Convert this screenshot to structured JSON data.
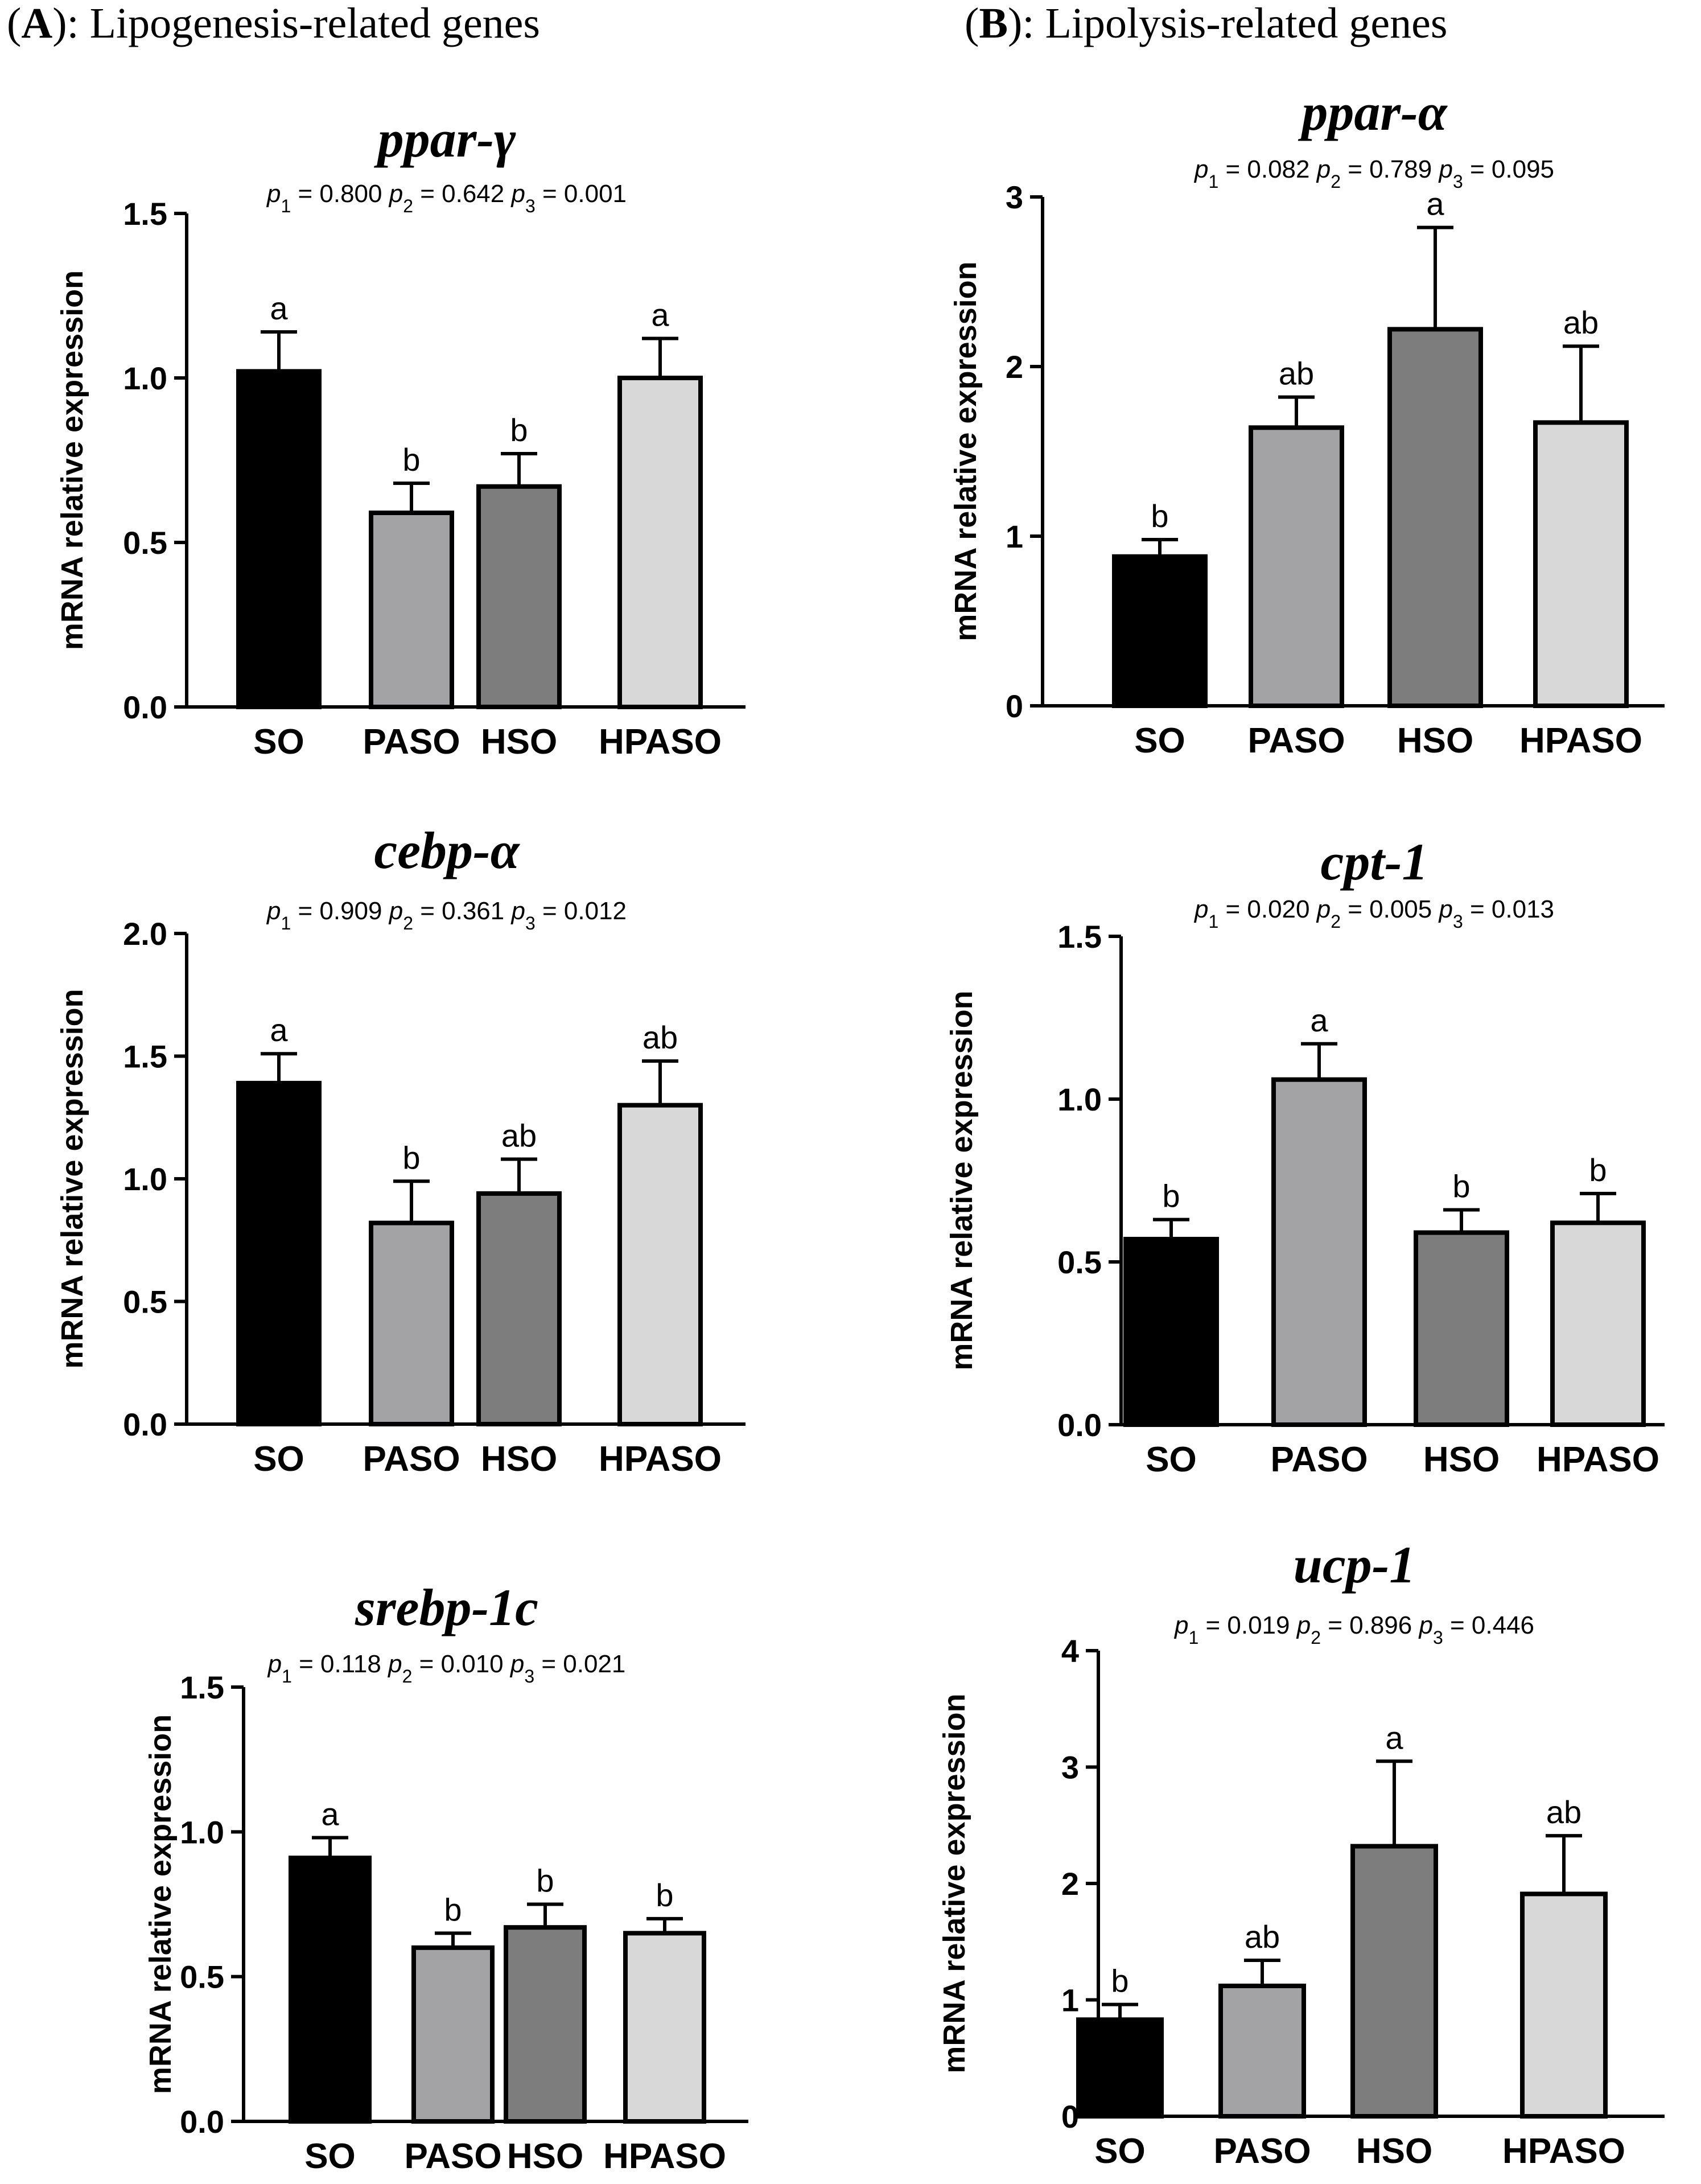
{
  "panels": {
    "a": {
      "letter": "A",
      "rest": "): Lipogenesis-related genes"
    },
    "b": {
      "letter": "B",
      "rest": "): Lipolysis-related genes"
    }
  },
  "colors": {
    "SO": "#000000",
    "PASO": "#a3a3a6",
    "HSO": "#7d7d7d",
    "HPASO": "#d8d8d8"
  },
  "chart_data": [
    {
      "type": "bar",
      "gene": "ppar-γ",
      "pvalues": [
        "0.800",
        "0.642",
        "0.001"
      ],
      "categories": [
        "SO",
        "PASO",
        "HSO",
        "HPASO"
      ],
      "values": [
        1.02,
        0.59,
        0.67,
        1.0
      ],
      "errors": [
        0.12,
        0.09,
        0.1,
        0.12
      ],
      "letters": [
        "a",
        "b",
        "b",
        "a"
      ],
      "ylabel": "mRNA relative expression",
      "ylim": [
        0,
        1.5
      ],
      "yticks": [
        "0.0",
        "0.5",
        "1.0",
        "1.5"
      ]
    },
    {
      "type": "bar",
      "gene": "cebp-α",
      "pvalues": [
        "0.909",
        "0.361",
        "0.012"
      ],
      "categories": [
        "SO",
        "PASO",
        "HSO",
        "HPASO"
      ],
      "values": [
        1.39,
        0.82,
        0.94,
        1.3
      ],
      "errors": [
        0.12,
        0.17,
        0.14,
        0.18
      ],
      "letters": [
        "a",
        "b",
        "ab",
        "ab"
      ],
      "ylabel": "mRNA relative expression",
      "ylim": [
        0,
        2.0
      ],
      "yticks": [
        "0.0",
        "0.5",
        "1.0",
        "1.5",
        "2.0"
      ]
    },
    {
      "type": "bar",
      "gene": "srebp-1c",
      "pvalues": [
        "0.118",
        "0.010",
        "0.021"
      ],
      "categories": [
        "SO",
        "PASO",
        "HSO",
        "HPASO"
      ],
      "values": [
        0.91,
        0.6,
        0.67,
        0.65
      ],
      "errors": [
        0.07,
        0.05,
        0.08,
        0.05
      ],
      "letters": [
        "a",
        "b",
        "b",
        "b"
      ],
      "ylabel": "mRNA relative expression",
      "ylim": [
        0,
        1.5
      ],
      "yticks": [
        "0.0",
        "0.5",
        "1.0",
        "1.5"
      ]
    },
    {
      "type": "bar",
      "gene": "ppar-α",
      "pvalues": [
        "0.082",
        "0.789",
        "0.095"
      ],
      "categories": [
        "SO",
        "PASO",
        "HSO",
        "HPASO"
      ],
      "values": [
        0.88,
        1.64,
        2.22,
        1.67
      ],
      "errors": [
        0.1,
        0.18,
        0.6,
        0.45
      ],
      "letters": [
        "b",
        "ab",
        "a",
        "ab"
      ],
      "ylabel": "mRNA relative expression",
      "ylim": [
        0,
        3
      ],
      "yticks": [
        "0",
        "1",
        "2",
        "3"
      ]
    },
    {
      "type": "bar",
      "gene": "cpt-1",
      "pvalues": [
        "0.020",
        "0.005",
        "0.013"
      ],
      "categories": [
        "SO",
        "PASO",
        "HSO",
        "HPASO"
      ],
      "values": [
        0.57,
        1.06,
        0.59,
        0.62
      ],
      "errors": [
        0.06,
        0.11,
        0.07,
        0.09
      ],
      "letters": [
        "b",
        "a",
        "b",
        "b"
      ],
      "ylabel": "mRNA relative expression",
      "ylim": [
        0,
        1.5
      ],
      "yticks": [
        "0.0",
        "0.5",
        "1.0",
        "1.5"
      ]
    },
    {
      "type": "bar",
      "gene": "ucp-1",
      "pvalues": [
        "0.019",
        "0.896",
        "0.446"
      ],
      "categories": [
        "SO",
        "PASO",
        "HSO",
        "HPASO"
      ],
      "values": [
        0.83,
        1.12,
        2.32,
        1.91
      ],
      "errors": [
        0.13,
        0.22,
        0.73,
        0.5
      ],
      "letters": [
        "b",
        "ab",
        "a",
        "ab"
      ],
      "ylabel": "mRNA relative expression",
      "ylim": [
        0,
        4
      ],
      "yticks": [
        "0",
        "1",
        "2",
        "3",
        "4"
      ]
    }
  ]
}
